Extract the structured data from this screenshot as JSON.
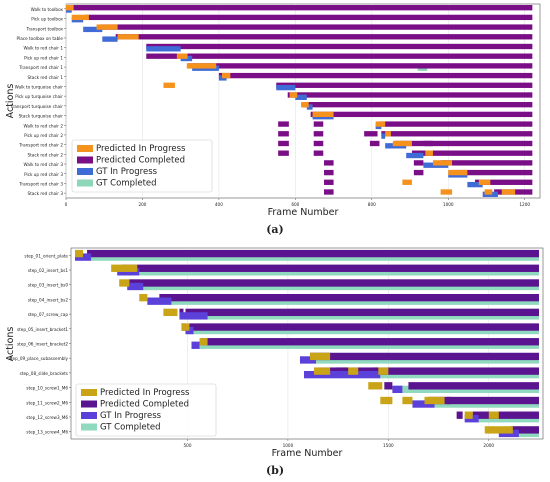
{
  "figure": {
    "caption_a": "(a)",
    "caption_b": "(b)"
  },
  "colors": {
    "pred_prog": "#F5921E",
    "pred_comp": "#7A0E86",
    "gt_prog": "#3F6BD6",
    "gt_comp": "#8ED6B8",
    "b_pred_prog": "#C9A416",
    "b_pred_comp": "#5A1490",
    "b_gt_prog": "#5B40D9",
    "b_gt_comp": "#8FD9BE"
  },
  "chart_data": [
    {
      "type": "bar",
      "subtype": "gantt",
      "panel": "a",
      "xlabel": "Frame Number",
      "ylabel": "Actions",
      "xlim": [
        0,
        1240
      ],
      "xticks": [
        0,
        200,
        400,
        600,
        800,
        1000,
        1200
      ],
      "grid": true,
      "legend_position": "lower-left",
      "legend": [
        "Predicted In Progress",
        "Predicted Completed",
        "GT In Progress",
        "GT Completed"
      ],
      "categories": [
        "Walk to toolbox",
        "Pick up toolbox",
        "Transport toolbox",
        "Place toolbox on table",
        "Walk to red chair 1",
        "Pick up red chair 1",
        "Transport red chair 1",
        "Stack red chair 1",
        "Walk to turquoise chair",
        "Pick up turquoise chair",
        "Transport turquoise chair",
        "Stack turquoise chair",
        "Walk to red chair 2",
        "Pick up red chair 2",
        "Transport red chair 2",
        "Stack red chair 2",
        "Walk to red chair 3",
        "Pick up red chair 3",
        "Transport red chair 3",
        "Stack red chair 3"
      ],
      "series": [
        {
          "name": "GT In Progress",
          "bars": [
            [
              0,
              0,
              15
            ],
            [
              1,
              15,
              45
            ],
            [
              2,
              45,
              95
            ],
            [
              3,
              95,
              135
            ],
            [
              4,
              210,
              300
            ],
            [
              5,
              300,
              330
            ],
            [
              6,
              330,
              400
            ],
            [
              7,
              400,
              420
            ],
            [
              8,
              550,
              600
            ],
            [
              9,
              600,
              630
            ],
            [
              10,
              630,
              645
            ],
            [
              11,
              645,
              700
            ],
            [
              12,
              810,
              825
            ],
            [
              13,
              825,
              835
            ],
            [
              14,
              835,
              890
            ],
            [
              15,
              890,
              935
            ],
            [
              16,
              935,
              1000
            ],
            [
              17,
              1000,
              1050
            ],
            [
              18,
              1050,
              1090
            ],
            [
              19,
              1090,
              1130
            ]
          ]
        },
        {
          "name": "GT Completed",
          "bars": [
            [
              6,
              920,
              945
            ]
          ]
        },
        {
          "name": "Predicted Completed",
          "bars": [
            [
              0,
              15,
              1220
            ],
            [
              1,
              50,
              1220
            ],
            [
              2,
              90,
              1220
            ],
            [
              3,
              130,
              1220
            ],
            [
              4,
              210,
              1220
            ],
            [
              5,
              210,
              1220
            ],
            [
              6,
              320,
              1220
            ],
            [
              7,
              400,
              1220
            ],
            [
              8,
              550,
              1220
            ],
            [
              9,
              580,
              1220
            ],
            [
              10,
              620,
              1220
            ],
            [
              11,
              640,
              1220
            ],
            [
              12,
              820,
              1220
            ],
            [
              13,
              825,
              1220
            ],
            [
              14,
              860,
              1220
            ],
            [
              15,
              920,
              1220
            ],
            [
              16,
              980,
              1220
            ],
            [
              17,
              1010,
              1220
            ],
            [
              18,
              1070,
              1220
            ],
            [
              19,
              1120,
              1220
            ],
            [
              12,
              555,
              583
            ],
            [
              13,
              555,
              583
            ],
            [
              14,
              555,
              583
            ],
            [
              15,
              555,
              583
            ],
            [
              12,
              648,
              673
            ],
            [
              13,
              648,
              673
            ],
            [
              14,
              648,
              673
            ],
            [
              15,
              648,
              673
            ],
            [
              16,
              675,
              700
            ],
            [
              17,
              675,
              700
            ],
            [
              18,
              675,
              700
            ],
            [
              19,
              675,
              700
            ],
            [
              13,
              780,
              815
            ],
            [
              14,
              795,
              820
            ],
            [
              15,
              905,
              925
            ],
            [
              14,
              935,
              960
            ],
            [
              16,
              910,
              935
            ],
            [
              17,
              910,
              935
            ]
          ]
        },
        {
          "name": "Predicted In Progress",
          "bars": [
            [
              0,
              0,
              20
            ],
            [
              1,
              15,
              60
            ],
            [
              2,
              80,
              135
            ],
            [
              3,
              135,
              190
            ],
            [
              5,
              290,
              318
            ],
            [
              6,
              316,
              393
            ],
            [
              7,
              408,
              430
            ],
            [
              8,
              255,
              285
            ],
            [
              9,
              585,
              605
            ],
            [
              10,
              615,
              635
            ],
            [
              11,
              645,
              700
            ],
            [
              12,
              810,
              835
            ],
            [
              13,
              835,
              850
            ],
            [
              14,
              855,
              905
            ],
            [
              15,
              940,
              960
            ],
            [
              16,
              960,
              1010
            ],
            [
              17,
              1000,
              1050
            ],
            [
              18,
              1080,
              1110
            ],
            [
              19,
              1140,
              1175
            ],
            [
              18,
              880,
              905
            ],
            [
              19,
              980,
              1010
            ],
            [
              19,
              1095,
              1115
            ]
          ]
        }
      ]
    },
    {
      "type": "bar",
      "subtype": "gantt",
      "panel": "b",
      "xlabel": "Frame Number",
      "ylabel": "Actions",
      "xlim": [
        -80,
        2270
      ],
      "xticks": [
        500,
        1000,
        1500,
        2000
      ],
      "grid": true,
      "legend_position": "lower-left",
      "legend": [
        "Predicted In Progress",
        "Predicted Completed",
        "GT In Progress",
        "GT Completed"
      ],
      "categories": [
        "step_01_orient_plate",
        "step_02_insert_bs1",
        "step_03_insert_bs0",
        "step_04_insert_bs2",
        "step_07_screw_cap",
        "step_05_insert_bracket1",
        "step_06_insert_bracket2",
        "step_09_place_subassembly",
        "step_08_slide_brackets",
        "step_10_screw1_M6",
        "step_11_screw2_M6",
        "step_12_screw3_M6",
        "step_13_screw4_M6"
      ],
      "series": [
        {
          "name": "GT In Progress",
          "bars": [
            [
              0,
              -60,
              20
            ],
            [
              1,
              150,
              260
            ],
            [
              2,
              200,
              280
            ],
            [
              3,
              300,
              420
            ],
            [
              4,
              460,
              600
            ],
            [
              5,
              490,
              530
            ],
            [
              6,
              520,
              560
            ],
            [
              7,
              1060,
              1140
            ],
            [
              8,
              1080,
              1460
            ],
            [
              9,
              1520,
              1570
            ],
            [
              10,
              1620,
              1730
            ],
            [
              11,
              1880,
              1950
            ],
            [
              12,
              2050,
              2150
            ]
          ]
        },
        {
          "name": "GT Completed",
          "bars": [
            [
              0,
              20,
              2250
            ],
            [
              1,
              260,
              2250
            ],
            [
              2,
              280,
              2250
            ],
            [
              3,
              420,
              2250
            ],
            [
              4,
              600,
              2250
            ],
            [
              5,
              530,
              2250
            ],
            [
              6,
              560,
              2250
            ],
            [
              7,
              1140,
              2250
            ],
            [
              8,
              1460,
              2250
            ],
            [
              9,
              1570,
              2250
            ],
            [
              10,
              1730,
              2250
            ],
            [
              11,
              1950,
              2250
            ],
            [
              12,
              2150,
              2250
            ]
          ]
        },
        {
          "name": "Predicted Completed",
          "bars": [
            [
              0,
              0,
              2250
            ],
            [
              1,
              170,
              2250
            ],
            [
              2,
              210,
              2250
            ],
            [
              3,
              360,
              2250
            ],
            [
              4,
              490,
              2250
            ],
            [
              5,
              510,
              2250
            ],
            [
              6,
              570,
              2250
            ],
            [
              7,
              1110,
              2250
            ],
            [
              8,
              1150,
              2250
            ],
            [
              9,
              1600,
              2250
            ],
            [
              10,
              1700,
              2250
            ],
            [
              11,
              1920,
              2250
            ],
            [
              12,
              2110,
              2250
            ],
            [
              4,
              460,
              480
            ],
            [
              5,
              470,
              490
            ],
            [
              8,
              1240,
              1290
            ],
            [
              8,
              1420,
              1450
            ],
            [
              9,
              1480,
              1520
            ],
            [
              10,
              1790,
              1810
            ],
            [
              11,
              1840,
              1870
            ]
          ]
        },
        {
          "name": "Predicted In Progress",
          "bars": [
            [
              0,
              -60,
              -20
            ],
            [
              1,
              120,
              250
            ],
            [
              2,
              160,
              210
            ],
            [
              3,
              260,
              300
            ],
            [
              4,
              380,
              450
            ],
            [
              5,
              470,
              510
            ],
            [
              6,
              560,
              600
            ],
            [
              7,
              1110,
              1210
            ],
            [
              8,
              1130,
              1210
            ],
            [
              8,
              1300,
              1350
            ],
            [
              8,
              1450,
              1500
            ],
            [
              9,
              1400,
              1470
            ],
            [
              10,
              1460,
              1520
            ],
            [
              10,
              1570,
              1620
            ],
            [
              10,
              1680,
              1780
            ],
            [
              11,
              1880,
              1920
            ],
            [
              11,
              2000,
              2050
            ],
            [
              12,
              1980,
              2120
            ]
          ]
        }
      ]
    }
  ]
}
